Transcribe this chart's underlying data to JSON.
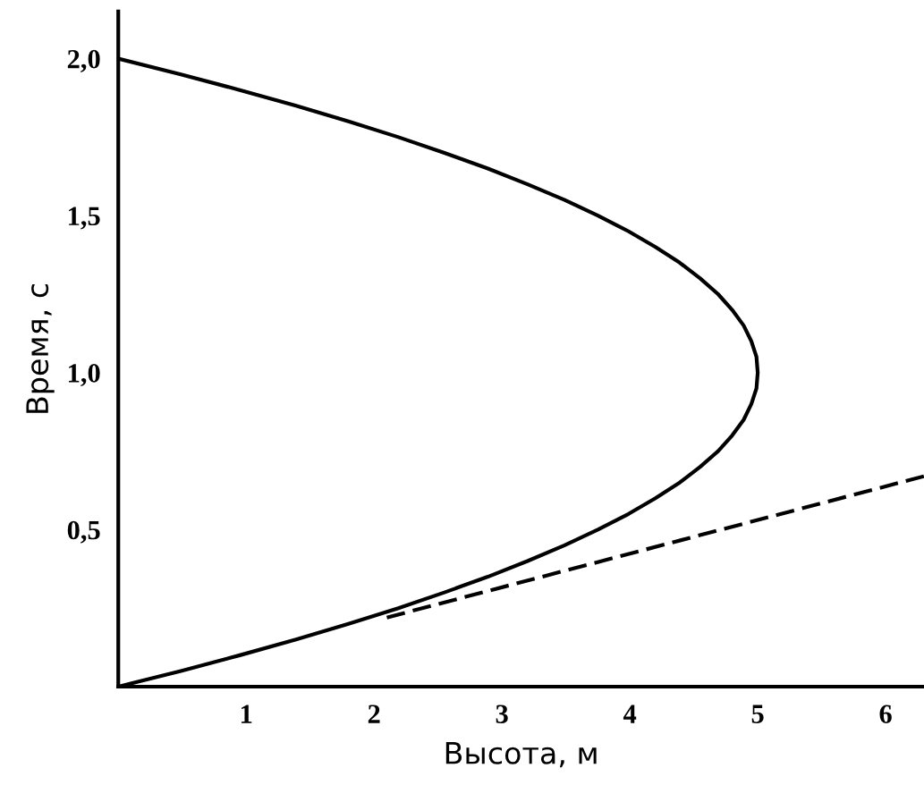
{
  "chart_data": {
    "type": "line",
    "xlabel": "Высота, м",
    "ylabel": "Время, с",
    "xlim": [
      0,
      6.3
    ],
    "ylim": [
      0,
      2.15
    ],
    "xticks": [
      1,
      2,
      3,
      4,
      5,
      6
    ],
    "yticks": [
      {
        "value": 0.5,
        "label": "0,5"
      },
      {
        "value": 1.0,
        "label": "1,0"
      },
      {
        "value": 1.5,
        "label": "1,5"
      },
      {
        "value": 2.0,
        "label": "2,0"
      }
    ],
    "grid": false,
    "series": [
      {
        "color": "#000000",
        "line_style": "solid",
        "x": [
          0,
          0.49,
          0.95,
          1.39,
          1.8,
          2.19,
          2.55,
          2.89,
          3.2,
          3.49,
          3.75,
          3.99,
          4.2,
          4.39,
          4.55,
          4.69,
          4.8,
          4.89,
          4.95,
          4.99,
          5.0,
          4.99,
          4.95,
          4.89,
          4.8,
          4.69,
          4.55,
          4.39,
          4.2,
          3.99,
          3.75,
          3.49,
          3.2,
          2.89,
          2.55,
          2.19,
          1.8,
          1.39,
          0.95,
          0.49,
          0
        ],
        "values": [
          0,
          0.05,
          0.1,
          0.15,
          0.2,
          0.25,
          0.3,
          0.35,
          0.4,
          0.45,
          0.5,
          0.55,
          0.6,
          0.65,
          0.7,
          0.75,
          0.8,
          0.85,
          0.9,
          0.95,
          1.0,
          1.05,
          1.1,
          1.15,
          1.2,
          1.25,
          1.3,
          1.35,
          1.4,
          1.45,
          1.5,
          1.55,
          1.6,
          1.65,
          1.7,
          1.75,
          1.8,
          1.85,
          1.9,
          1.95,
          2.0
        ]
      },
      {
        "color": "#000000",
        "line_style": "dashed",
        "x": [
          2.1,
          6.3
        ],
        "values": [
          0.22,
          0.67
        ]
      }
    ]
  }
}
